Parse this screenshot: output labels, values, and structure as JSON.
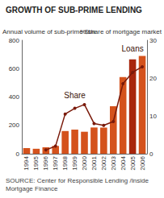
{
  "chart_data": {
    "type": "bar",
    "title": "GROWTH OF SUB-PRIME LENDING",
    "y_label": "Annual volume of sub-prime $bn",
    "y2_label": "% share of mortgage market",
    "source": "SOURCE: Center for Responsible Lending /Inside Mortgage Finance",
    "categories": [
      "1994",
      "1995",
      "1996",
      "1997",
      "1998",
      "1999",
      "2000",
      "2001",
      "2002",
      "2003",
      "2004",
      "2005",
      "2006"
    ],
    "series": [
      {
        "name": "Loans",
        "type": "bar",
        "color": "#d4521c",
        "colors": [
          "#d4521c",
          "#d4521c",
          "#d4521c",
          "#d4521c",
          "#d4521c",
          "#d4521c",
          "#d4521c",
          "#d4521c",
          "#d4521c",
          "#d4521c",
          "#d4521c",
          "#a8260c",
          "#d4521c"
        ],
        "values": [
          40,
          35,
          45,
          55,
          160,
          170,
          155,
          185,
          185,
          335,
          540,
          665,
          690
        ]
      },
      {
        "name": "Share",
        "type": "line",
        "axis": "y2",
        "color": "#7a1a0a",
        "marker": "circle",
        "values": [
          null,
          null,
          1,
          2,
          10.5,
          12,
          13,
          8,
          7.5,
          8.5,
          18.5,
          21.5,
          23
        ]
      }
    ],
    "annotations": [
      {
        "text": "Share",
        "x": "1999",
        "y": 15.5,
        "axis": "y2"
      },
      {
        "text": "Loans",
        "x": "2005",
        "y": 740,
        "axis": "y"
      }
    ],
    "ylim": [
      0,
      800
    ],
    "yticks": [
      0,
      200,
      400,
      600,
      800
    ],
    "y2lim": [
      0,
      30
    ],
    "y2ticks": [
      0,
      10,
      20,
      30
    ],
    "grid": false
  }
}
